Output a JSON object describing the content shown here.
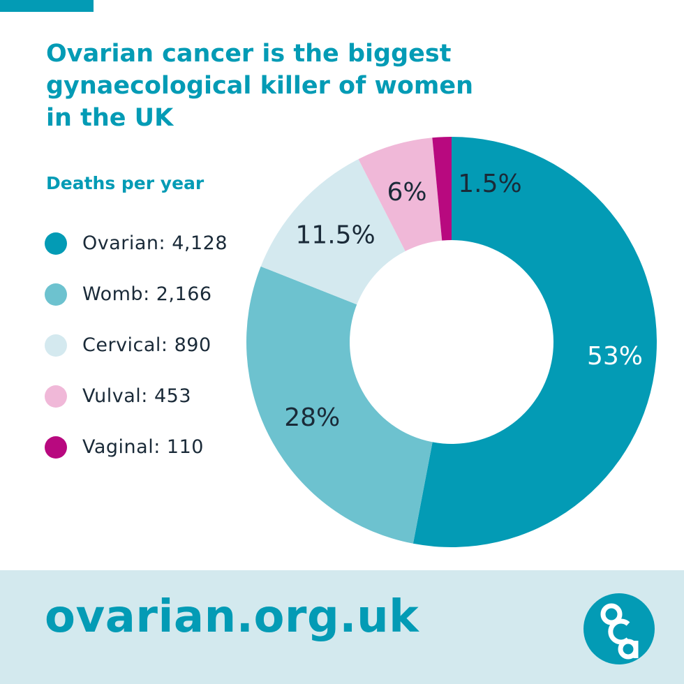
{
  "header": {
    "title_lines": [
      "Ovarian cancer is the biggest",
      "gynaecological killer of women",
      "in the UK"
    ]
  },
  "legend": {
    "title": "Deaths per year",
    "items": [
      {
        "label": "Ovarian: 4,128",
        "color": "#039bb5"
      },
      {
        "label": "Womb: 2,166",
        "color": "#6dc2cf"
      },
      {
        "label": "Cervical: 890",
        "color": "#d4e9ef"
      },
      {
        "label": "Vulval: 453",
        "color": "#f0b8d8"
      },
      {
        "label": "Vaginal: 110",
        "color": "#b8097f"
      }
    ]
  },
  "chart_data": {
    "type": "pie",
    "style": "donut",
    "categories": [
      "Ovarian",
      "Womb",
      "Cervical",
      "Vulval",
      "Vaginal"
    ],
    "values": [
      53,
      28,
      11.5,
      6,
      1.5
    ],
    "deaths": [
      4128,
      2166,
      890,
      453,
      110
    ],
    "labels": [
      "53%",
      "28%",
      "11.5%",
      "6%",
      "1.5%"
    ],
    "colors": [
      "#039bb5",
      "#6dc2cf",
      "#d4e9ef",
      "#f0b8d8",
      "#b8097f"
    ],
    "label_colors": [
      "#ffffff",
      "#1a2a38",
      "#1a2a38",
      "#1a2a38",
      "#1a2a38"
    ],
    "title": "Deaths per year",
    "legend": "left"
  },
  "footer": {
    "url": "ovarian.org.uk",
    "logo": "oca-logo"
  }
}
